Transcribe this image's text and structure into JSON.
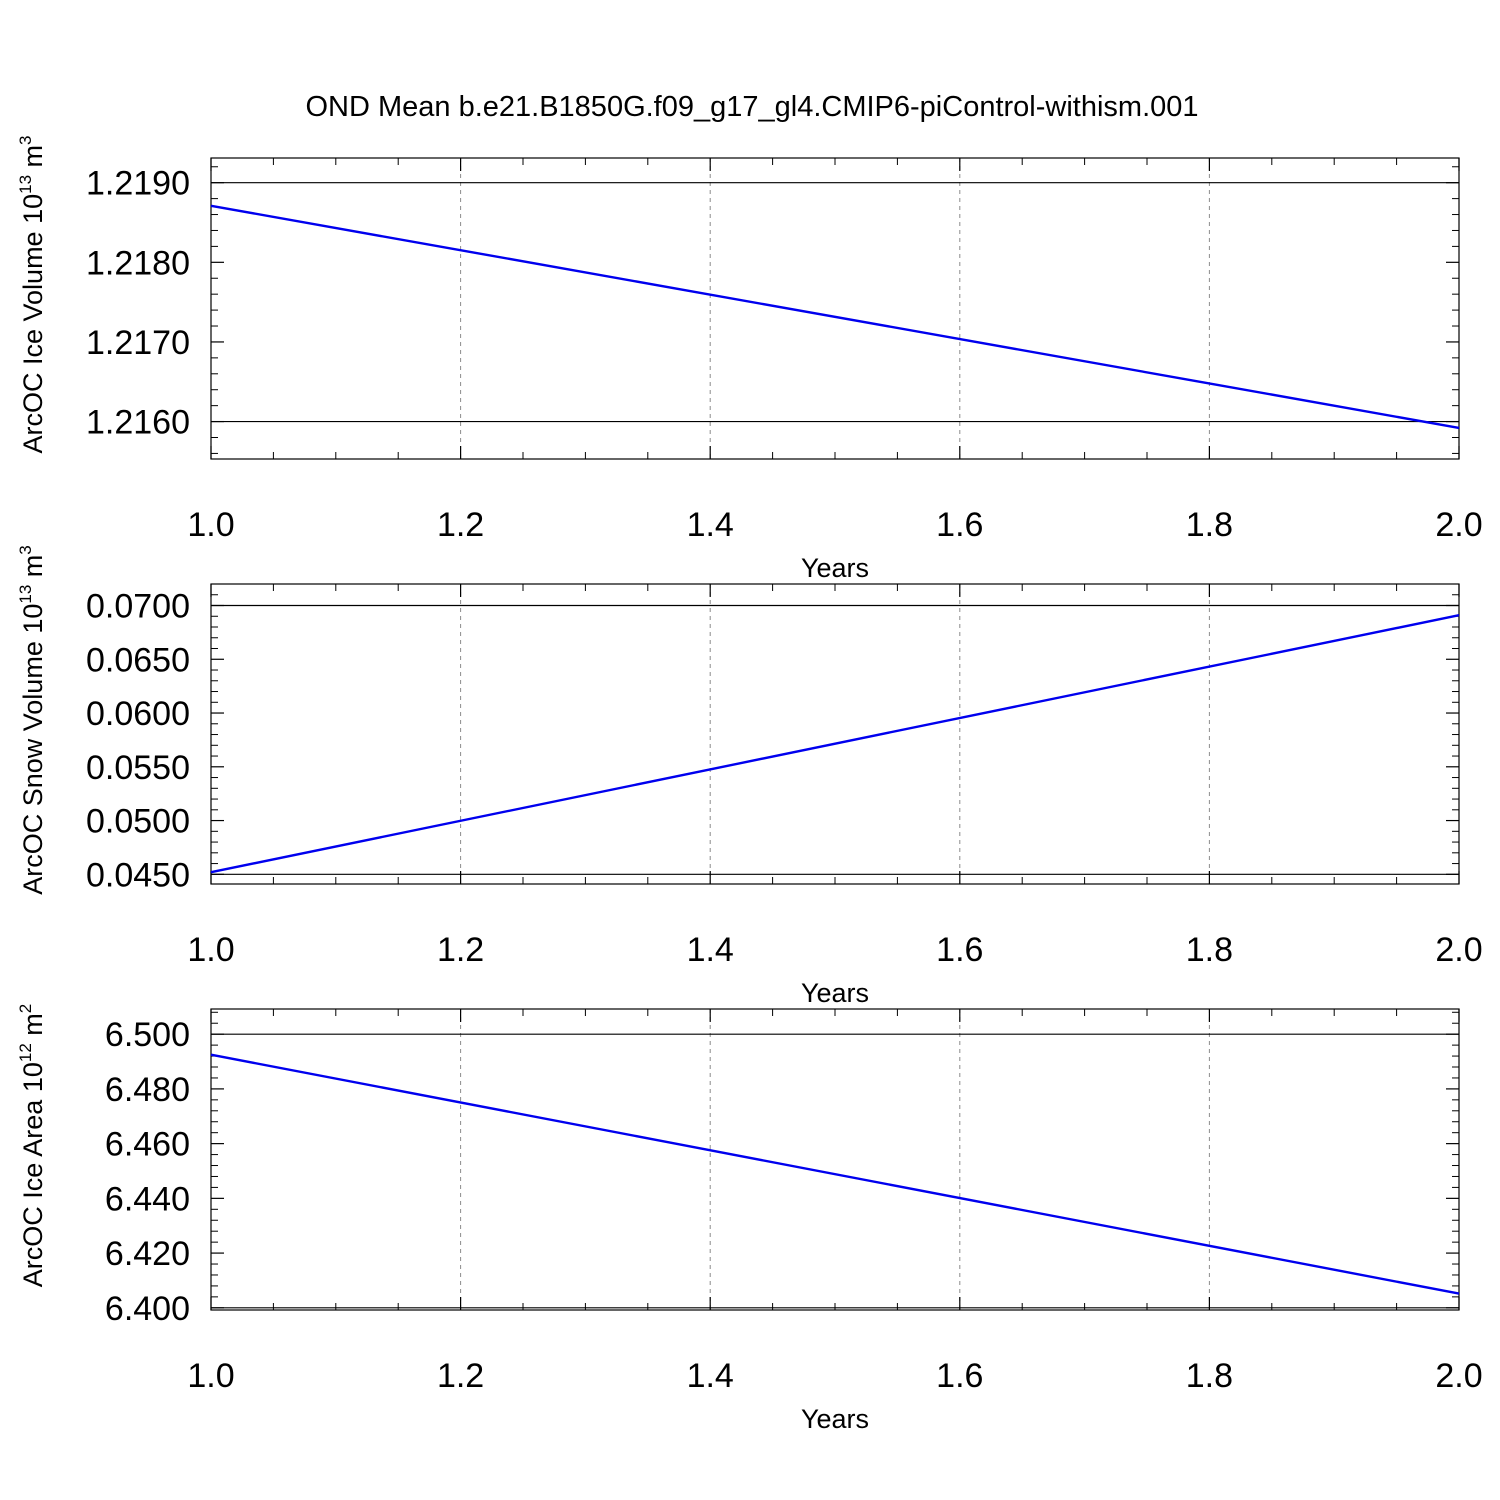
{
  "title": "OND Mean b.e21.B1850G.f09_g17_gl4.CMIP6-piControl-withism.001",
  "colors": {
    "series": "#0000ee",
    "grid": "#8c8c8c",
    "axis": "#000000"
  },
  "chart_data": [
    {
      "type": "line",
      "ylabel": {
        "prefix": "ArcOC Ice Volume 10",
        "exponent": "13",
        "unit": " m",
        "unit_exponent": "3"
      },
      "xlabel": "Years",
      "xlim": [
        1.0,
        2.0
      ],
      "ylim": [
        1.21553,
        1.21931
      ],
      "xticks": [
        1.0,
        1.2,
        1.4,
        1.6,
        1.8,
        2.0
      ],
      "xtick_labels": [
        "1.0",
        "1.2",
        "1.4",
        "1.6",
        "1.8",
        "2.0"
      ],
      "yticks": [
        1.216,
        1.217,
        1.218,
        1.219
      ],
      "ytick_labels": [
        "1.2160",
        "1.2170",
        "1.2180",
        "1.2190"
      ],
      "grid_x": true,
      "series": [
        {
          "name": "Ice Volume",
          "x": [
            1.0,
            2.0
          ],
          "y": [
            1.21871,
            1.21592
          ]
        }
      ]
    },
    {
      "type": "line",
      "ylabel": {
        "prefix": "ArcOC Snow Volume 10",
        "exponent": "13",
        "unit": " m",
        "unit_exponent": "3"
      },
      "xlabel": "Years",
      "xlim": [
        1.0,
        2.0
      ],
      "ylim": [
        0.0441,
        0.072
      ],
      "xticks": [
        1.0,
        1.2,
        1.4,
        1.6,
        1.8,
        2.0
      ],
      "xtick_labels": [
        "1.0",
        "1.2",
        "1.4",
        "1.6",
        "1.8",
        "2.0"
      ],
      "yticks": [
        0.045,
        0.05,
        0.055,
        0.06,
        0.065,
        0.07
      ],
      "ytick_labels": [
        "0.0450",
        "0.0500",
        "0.0550",
        "0.0600",
        "0.0650",
        "0.0700"
      ],
      "grid_x": true,
      "series": [
        {
          "name": "Snow Volume",
          "x": [
            1.0,
            2.0
          ],
          "y": [
            0.0452,
            0.0691
          ]
        }
      ]
    },
    {
      "type": "line",
      "ylabel": {
        "prefix": "ArcOC Ice Area 10",
        "exponent": "12",
        "unit": " m",
        "unit_exponent": "2"
      },
      "xlabel": "Years",
      "xlim": [
        1.0,
        2.0
      ],
      "ylim": [
        6.3992,
        6.5092
      ],
      "xticks": [
        1.0,
        1.2,
        1.4,
        1.6,
        1.8,
        2.0
      ],
      "xtick_labels": [
        "1.0",
        "1.2",
        "1.4",
        "1.6",
        "1.8",
        "2.0"
      ],
      "yticks": [
        6.4,
        6.42,
        6.44,
        6.46,
        6.48,
        6.5
      ],
      "ytick_labels": [
        "6.400",
        "6.420",
        "6.440",
        "6.460",
        "6.480",
        "6.500"
      ],
      "grid_x": true,
      "series": [
        {
          "name": "Ice Area",
          "x": [
            1.0,
            2.0
          ],
          "y": [
            6.4925,
            6.4052
          ]
        }
      ]
    }
  ]
}
